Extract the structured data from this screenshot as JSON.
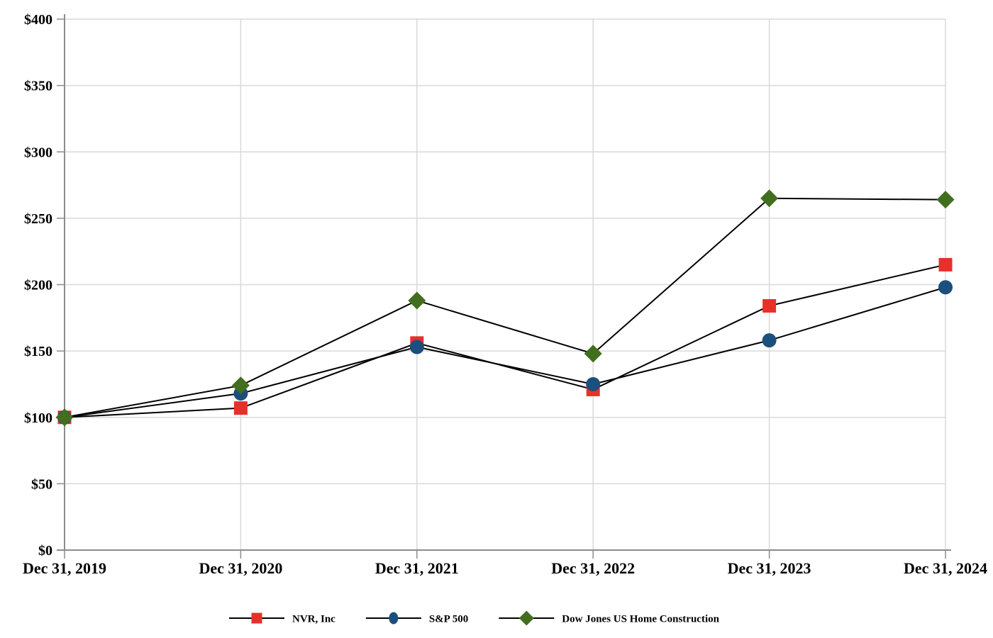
{
  "chart_data": {
    "type": "line",
    "title": "",
    "xlabel": "",
    "ylabel": "",
    "categories": [
      "Dec 31, 2019",
      "Dec 31, 2020",
      "Dec 31, 2021",
      "Dec 31, 2022",
      "Dec 31, 2023",
      "Dec 31, 2024"
    ],
    "series": [
      {
        "name": "NVR, Inc",
        "marker": "square",
        "color": "#e8302a",
        "values": [
          100,
          107,
          156,
          121,
          184,
          215
        ]
      },
      {
        "name": "S&P 500",
        "marker": "circle",
        "color": "#1b4f7d",
        "values": [
          100,
          118,
          153,
          125,
          158,
          198
        ]
      },
      {
        "name": "Dow Jones US Home Construction",
        "marker": "diamond",
        "color": "#426e1f",
        "values": [
          100,
          124,
          188,
          148,
          265,
          264
        ]
      }
    ],
    "ylim": [
      0,
      400
    ],
    "y_tick_interval": 50,
    "y_tick_labels": [
      "$0",
      "$50",
      "$100",
      "$150",
      "$200",
      "$250",
      "$300",
      "$350",
      "$400"
    ],
    "grid": true,
    "legend_position": "bottom",
    "line_color": "#000000",
    "axis_color": "#8c8c8c",
    "tick_color": "#8c8c8c",
    "gridline_color": "#d9d9d9",
    "background_color": "#ffffff"
  }
}
